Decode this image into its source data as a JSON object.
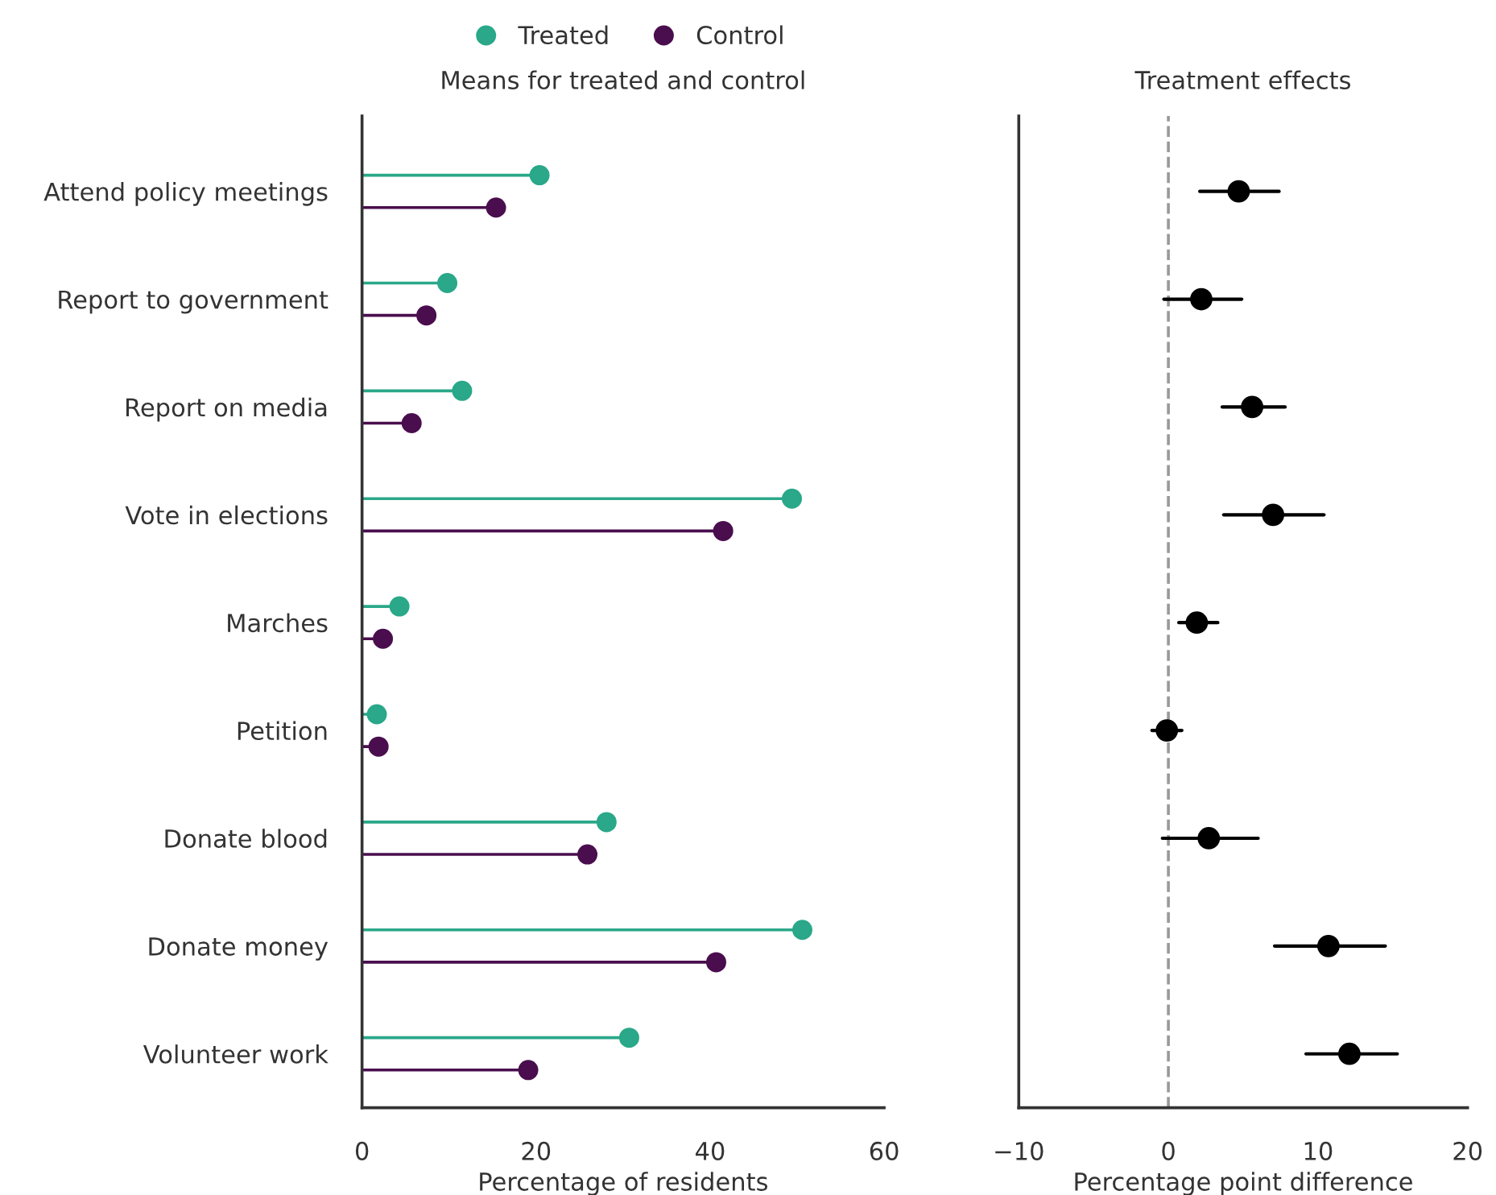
{
  "chart_data": [
    {
      "type": "lollipop",
      "title": "Means for treated and control",
      "xlabel": "Percentage of residents",
      "orientation": "horizontal",
      "legend": "top",
      "categories": [
        "Attend policy meetings",
        "Report to government",
        "Report on media",
        "Vote in elections",
        "Marches",
        "Petition",
        "Donate blood",
        "Donate money",
        "Volunteer work"
      ],
      "series": [
        {
          "name": "Treated",
          "color": "#2aa889",
          "values": [
            20.4,
            9.8,
            11.5,
            49.4,
            4.3,
            1.7,
            28.1,
            50.6,
            30.7
          ]
        },
        {
          "name": "Control",
          "color": "#4a0e4e",
          "values": [
            15.4,
            7.4,
            5.7,
            41.5,
            2.4,
            1.9,
            25.9,
            40.7,
            19.1
          ]
        }
      ],
      "xlim": [
        0,
        60
      ],
      "xticks": [
        0,
        20,
        40,
        60
      ],
      "marker": "circle"
    },
    {
      "type": "scatter",
      "title": "Treatment effects",
      "xlabel": "Percentage point difference",
      "orientation": "horizontal",
      "tick_labels": "x",
      "categories": [
        null,
        null,
        null,
        null,
        null,
        null,
        null,
        null,
        null
      ],
      "series": [
        {
          "color": "#000000",
          "values": [
            4.7,
            2.2,
            5.6,
            7.0,
            1.9,
            -0.1,
            2.7,
            10.7,
            12.1
          ],
          "errors": [
            [
              2.1,
              7.4
            ],
            [
              -0.3,
              4.9
            ],
            [
              3.6,
              7.8
            ],
            [
              3.7,
              10.4
            ],
            [
              0.7,
              3.3
            ],
            [
              -1.1,
              0.9
            ],
            [
              -0.4,
              6.0
            ],
            [
              7.1,
              14.5
            ],
            [
              9.2,
              15.3
            ]
          ]
        }
      ],
      "xlim": [
        -10,
        20
      ],
      "xticks": [
        {
          "value": -10,
          "label": "−10"
        },
        0,
        10,
        20
      ],
      "marker": "circle",
      "ref_lines": [
        {
          "axis": "x",
          "value": 0,
          "color": "#999999",
          "line_style": "dashed"
        }
      ]
    }
  ]
}
